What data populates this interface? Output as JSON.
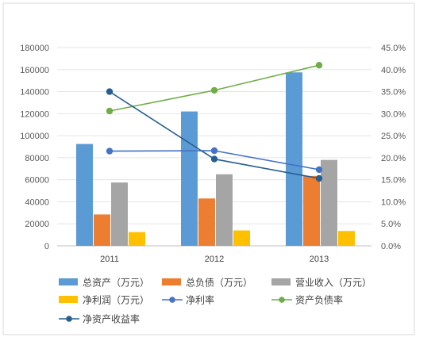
{
  "chart_data": {
    "type": "bar",
    "categories": [
      "2011",
      "2012",
      "2013"
    ],
    "series": [
      {
        "name": "总资产（万元）",
        "kind": "bar",
        "axis": "left",
        "color": "#5B9BD5",
        "values": [
          92500,
          122000,
          157500
        ]
      },
      {
        "name": "总负债（万元）",
        "kind": "bar",
        "axis": "left",
        "color": "#ED7D31",
        "values": [
          28500,
          43000,
          63500
        ]
      },
      {
        "name": "营业收入（万元）",
        "kind": "bar",
        "axis": "left",
        "color": "#A5A5A5",
        "values": [
          57500,
          65000,
          78000
        ]
      },
      {
        "name": "净利润（万元）",
        "kind": "bar",
        "axis": "left",
        "color": "#FFC000",
        "values": [
          12500,
          14000,
          13500
        ]
      },
      {
        "name": "净利率",
        "kind": "line",
        "axis": "right",
        "color": "#4472C4",
        "values": [
          21.5,
          21.6,
          17.3
        ]
      },
      {
        "name": "资产负债率",
        "kind": "line",
        "axis": "right",
        "color": "#70AD47",
        "values": [
          30.6,
          35.3,
          41.0
        ]
      },
      {
        "name": "净资产收益率",
        "kind": "line",
        "axis": "right",
        "color": "#255E91",
        "values": [
          35.0,
          19.7,
          15.3
        ]
      }
    ],
    "y_left": {
      "min": 0,
      "max": 180000,
      "ticks": [
        "0",
        "20000",
        "40000",
        "60000",
        "80000",
        "100000",
        "120000",
        "140000",
        "160000",
        "180000"
      ]
    },
    "y_right": {
      "min": 0,
      "max": 45,
      "ticks": [
        "0.0%",
        "5.0%",
        "10.0%",
        "15.0%",
        "20.0%",
        "25.0%",
        "30.0%",
        "35.0%",
        "40.0%",
        "45.0%"
      ]
    },
    "grid": true,
    "legend_position": "bottom"
  }
}
